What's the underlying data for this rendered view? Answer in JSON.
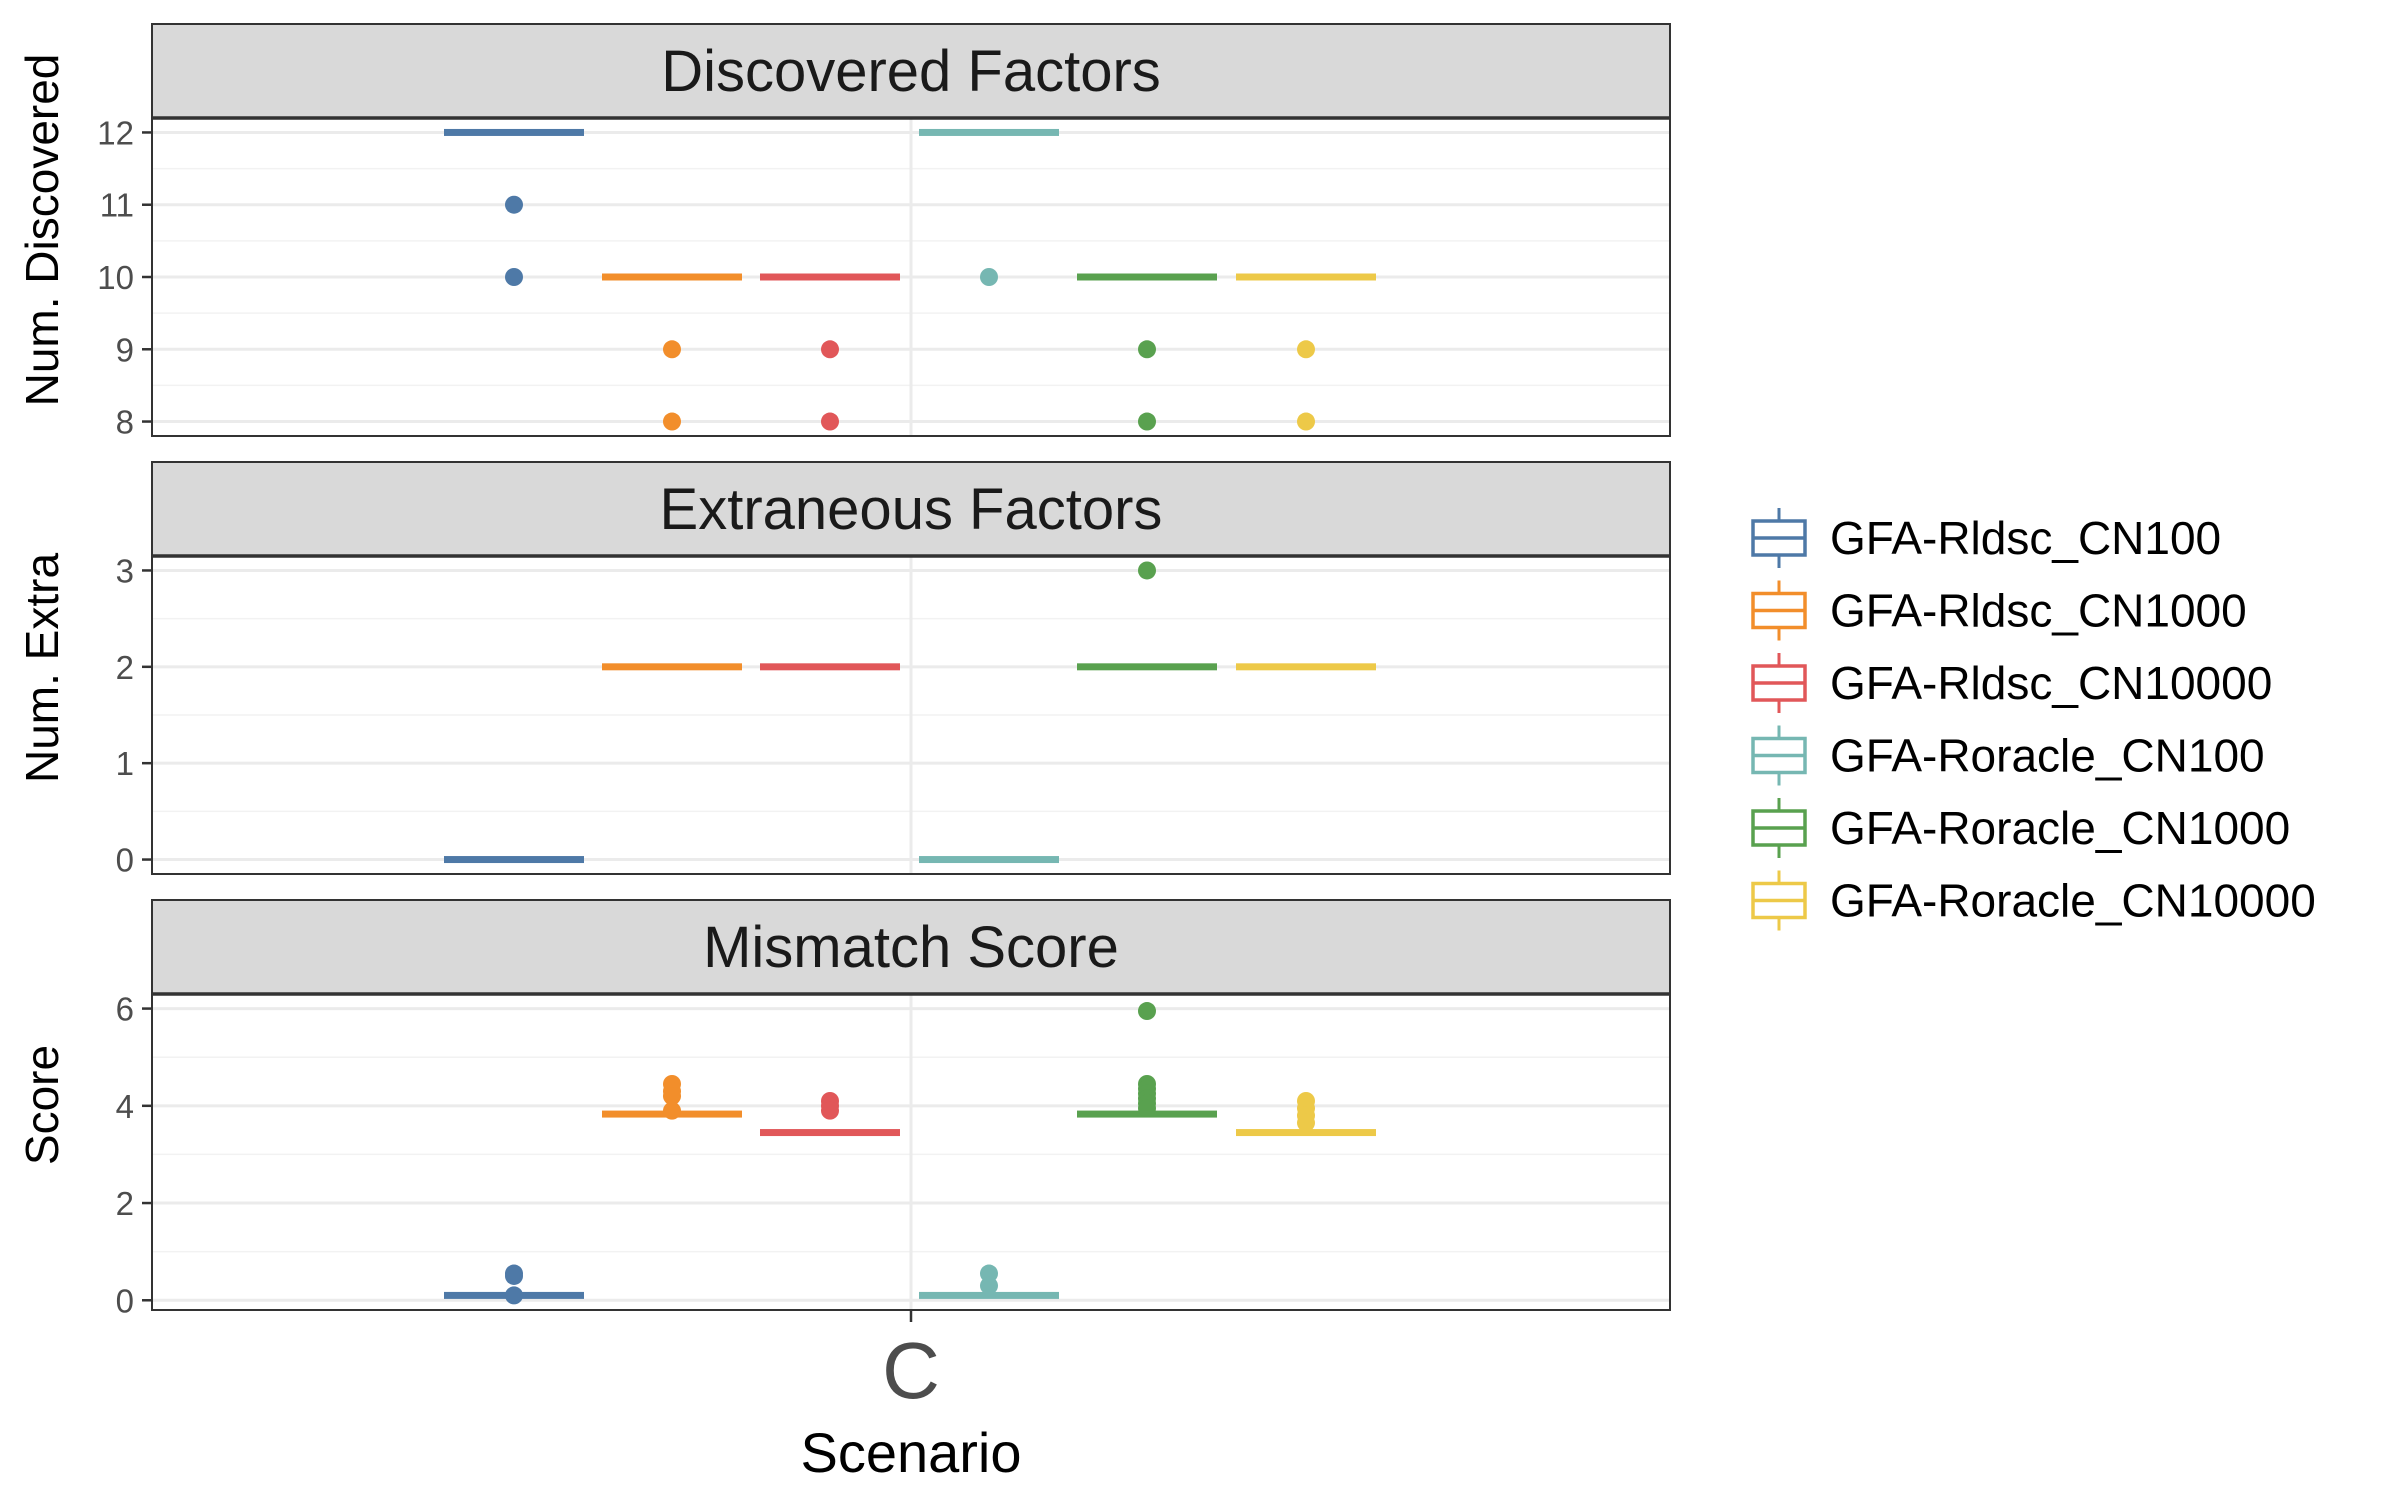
{
  "chart_data": {
    "type": "box",
    "title": "",
    "xlabel": "Scenario",
    "categories": [
      "C"
    ],
    "legend": {
      "position": "right"
    },
    "series": [
      {
        "name": "GFA-Rldsc_CN100",
        "color": "#4e79a7"
      },
      {
        "name": "GFA-Rldsc_CN1000",
        "color": "#f28e2b"
      },
      {
        "name": "GFA-Rldsc_CN10000",
        "color": "#e15759"
      },
      {
        "name": "GFA-Roracle_CN100",
        "color": "#76b7b2"
      },
      {
        "name": "GFA-Roracle_CN1000",
        "color": "#59a14f"
      },
      {
        "name": "GFA-Roracle_CN10000",
        "color": "#edc948"
      }
    ],
    "panels": [
      {
        "strip": "Discovered Factors",
        "ylabel": "Num. Discovered",
        "ylim": [
          7.8,
          12.2
        ],
        "yticks": [
          8,
          9,
          10,
          11,
          12
        ],
        "grid": true,
        "boxes": [
          {
            "series": "GFA-Rldsc_CN100",
            "median": 12,
            "outliers": [
              11,
              10
            ]
          },
          {
            "series": "GFA-Rldsc_CN1000",
            "median": 10,
            "outliers": [
              9,
              8
            ]
          },
          {
            "series": "GFA-Rldsc_CN10000",
            "median": 10,
            "outliers": [
              9,
              8
            ]
          },
          {
            "series": "GFA-Roracle_CN100",
            "median": 12,
            "outliers": [
              10
            ]
          },
          {
            "series": "GFA-Roracle_CN1000",
            "median": 10,
            "outliers": [
              9,
              8
            ]
          },
          {
            "series": "GFA-Roracle_CN10000",
            "median": 10,
            "outliers": [
              9,
              8
            ]
          }
        ]
      },
      {
        "strip": "Extraneous Factors",
        "ylabel": "Num. Extra",
        "ylim": [
          -0.15,
          3.15
        ],
        "yticks": [
          0,
          1,
          2,
          3
        ],
        "grid": true,
        "boxes": [
          {
            "series": "GFA-Rldsc_CN100",
            "median": 0,
            "outliers": []
          },
          {
            "series": "GFA-Rldsc_CN1000",
            "median": 2,
            "outliers": []
          },
          {
            "series": "GFA-Rldsc_CN10000",
            "median": 2,
            "outliers": []
          },
          {
            "series": "GFA-Roracle_CN100",
            "median": 0,
            "outliers": []
          },
          {
            "series": "GFA-Roracle_CN1000",
            "median": 2,
            "outliers": [
              3
            ]
          },
          {
            "series": "GFA-Roracle_CN10000",
            "median": 2,
            "outliers": []
          }
        ]
      },
      {
        "strip": "Mismatch Score",
        "ylabel": "Score",
        "ylim": [
          -0.2,
          6.3
        ],
        "yticks": [
          0,
          2,
          4,
          6
        ],
        "grid": true,
        "boxes": [
          {
            "series": "GFA-Rldsc_CN100",
            "median": 0.1,
            "outliers": [
              0.5,
              0.55,
              0.1
            ]
          },
          {
            "series": "GFA-Rldsc_CN1000",
            "median": 3.83,
            "outliers": [
              4.45,
              4.3,
              4.2,
              3.9
            ]
          },
          {
            "series": "GFA-Rldsc_CN10000",
            "median": 3.45,
            "outliers": [
              4.1,
              4.0,
              3.9
            ]
          },
          {
            "series": "GFA-Roracle_CN100",
            "median": 0.1,
            "outliers": [
              0.55,
              0.3
            ]
          },
          {
            "series": "GFA-Roracle_CN1000",
            "median": 3.83,
            "outliers": [
              5.95,
              4.45,
              4.35,
              4.25,
              4.15,
              4.05,
              3.95
            ]
          },
          {
            "series": "GFA-Roracle_CN10000",
            "median": 3.45,
            "outliers": [
              4.1,
              3.95,
              3.8,
              3.65
            ]
          }
        ]
      }
    ]
  }
}
